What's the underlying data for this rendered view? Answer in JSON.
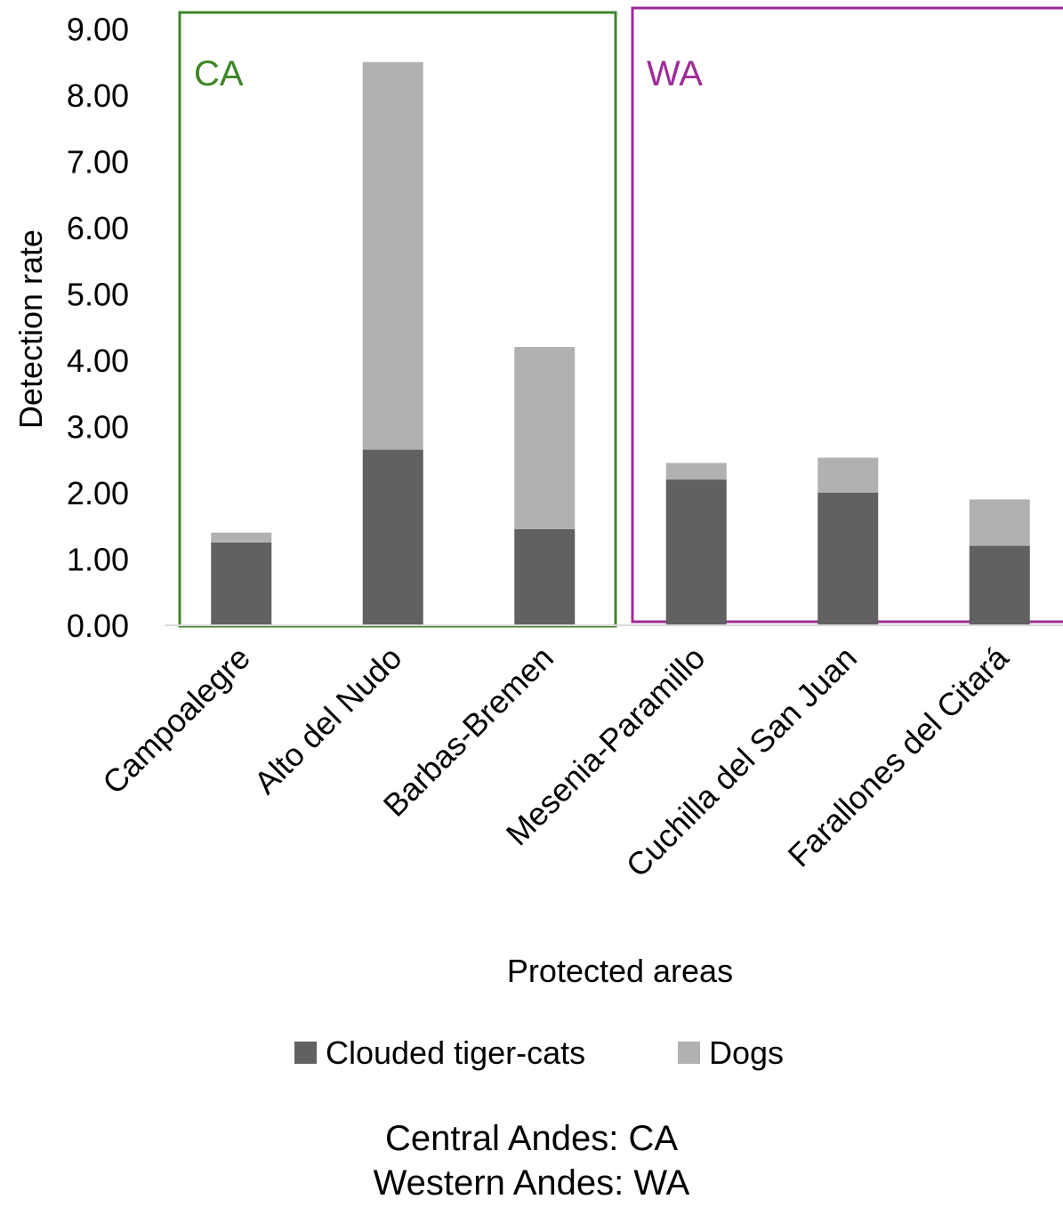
{
  "chart_data": {
    "type": "bar",
    "stacked": true,
    "xlabel": "Protected areas",
    "ylabel": "Detection rate",
    "ylim": [
      0,
      9
    ],
    "yticks": [
      "0.00",
      "1.00",
      "2.00",
      "3.00",
      "4.00",
      "5.00",
      "6.00",
      "7.00",
      "8.00",
      "9.00"
    ],
    "grid": false,
    "legend_position": "bottom",
    "categories": [
      "Campoalegre",
      "Alto del Nudo",
      "Barbas-Bremen",
      "Mesenia-Paramillo",
      "Cuchilla del San Juan",
      "Farallones del Citará"
    ],
    "series": [
      {
        "name": "Clouded tiger-cats",
        "color": "#616161",
        "values": [
          1.25,
          2.65,
          1.45,
          2.2,
          2.0,
          1.2
        ]
      },
      {
        "name": "Dogs",
        "color": "#b1b1b1",
        "values": [
          0.15,
          5.85,
          2.75,
          0.25,
          0.53,
          0.7
        ]
      }
    ],
    "groups": [
      {
        "label": "CA",
        "color": "#3d8628",
        "categories": [
          0,
          1,
          2
        ]
      },
      {
        "label": "WA",
        "color": "#9b2c96",
        "categories": [
          3,
          4,
          5
        ]
      }
    ],
    "notes": [
      "Central Andes: CA",
      "Western Andes: WA"
    ]
  }
}
